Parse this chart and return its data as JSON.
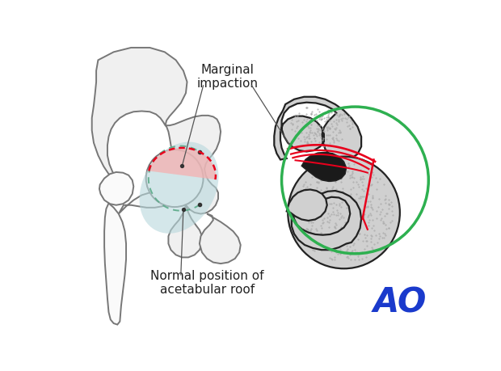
{
  "bg_color": "#ffffff",
  "annotation_marginal": "Marginal\nimpaction",
  "annotation_normal": "Normal position of\nacetabular roof",
  "annotation_color": "#555555",
  "ao_text": "AO",
  "ao_color": "#1a3acc",
  "circle_color": "#2eb050",
  "circle_lw": 2.5,
  "red_color": "#e8001c",
  "red_fill": "#f5b0b0",
  "bone_outline": "#777777",
  "bone_fill": "#f0f0f0",
  "bone_fill_white": "#fafafa",
  "cartilage_fill": "#b8d8dc",
  "teal_outline": "#5aaa88",
  "figsize": [
    6.2,
    4.59
  ],
  "dpi": 100
}
